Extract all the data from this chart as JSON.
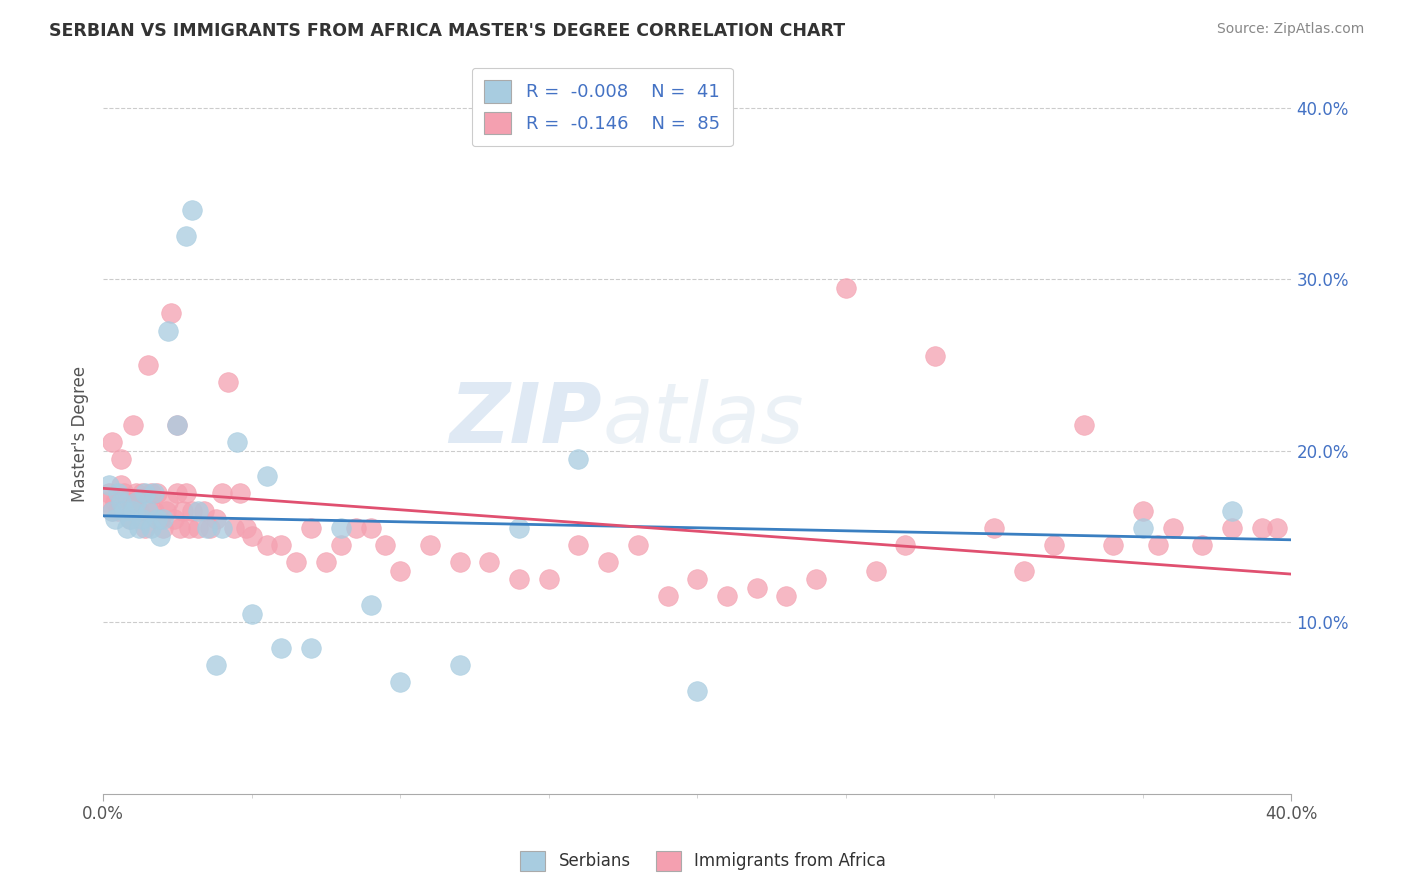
{
  "title": "SERBIAN VS IMMIGRANTS FROM AFRICA MASTER'S DEGREE CORRELATION CHART",
  "source": "Source: ZipAtlas.com",
  "ylabel": "Master's Degree",
  "legend_label1": "Serbians",
  "legend_label2": "Immigrants from Africa",
  "R1": -0.008,
  "N1": 41,
  "R2": -0.146,
  "N2": 85,
  "color_serbian": "#a8cce0",
  "color_african": "#f4a0b0",
  "color_line_serbian": "#3a7fc1",
  "color_line_african": "#e05070",
  "watermark_zip": "ZIP",
  "watermark_atlas": "atlas",
  "xmin": 0.0,
  "xmax": 0.4,
  "ymin": 0.0,
  "ymax": 0.42,
  "serbian_x": [
    0.002,
    0.003,
    0.004,
    0.005,
    0.006,
    0.007,
    0.008,
    0.009,
    0.01,
    0.011,
    0.012,
    0.013,
    0.014,
    0.015,
    0.016,
    0.017,
    0.018,
    0.019,
    0.02,
    0.022,
    0.025,
    0.028,
    0.03,
    0.032,
    0.035,
    0.038,
    0.04,
    0.045,
    0.05,
    0.055,
    0.06,
    0.07,
    0.08,
    0.09,
    0.1,
    0.12,
    0.14,
    0.16,
    0.2,
    0.35,
    0.38
  ],
  "serbian_y": [
    0.18,
    0.165,
    0.16,
    0.175,
    0.17,
    0.165,
    0.155,
    0.16,
    0.165,
    0.17,
    0.155,
    0.16,
    0.175,
    0.165,
    0.155,
    0.175,
    0.16,
    0.15,
    0.16,
    0.27,
    0.215,
    0.325,
    0.34,
    0.165,
    0.155,
    0.075,
    0.155,
    0.205,
    0.105,
    0.185,
    0.085,
    0.085,
    0.155,
    0.11,
    0.065,
    0.075,
    0.155,
    0.195,
    0.06,
    0.155,
    0.165
  ],
  "african_x": [
    0.001,
    0.002,
    0.003,
    0.004,
    0.005,
    0.006,
    0.007,
    0.008,
    0.009,
    0.01,
    0.011,
    0.012,
    0.013,
    0.014,
    0.015,
    0.016,
    0.017,
    0.018,
    0.019,
    0.02,
    0.021,
    0.022,
    0.023,
    0.024,
    0.025,
    0.026,
    0.027,
    0.028,
    0.029,
    0.03,
    0.032,
    0.034,
    0.036,
    0.038,
    0.04,
    0.042,
    0.044,
    0.046,
    0.048,
    0.05,
    0.055,
    0.06,
    0.065,
    0.07,
    0.075,
    0.08,
    0.085,
    0.09,
    0.095,
    0.1,
    0.11,
    0.12,
    0.13,
    0.14,
    0.15,
    0.16,
    0.17,
    0.18,
    0.19,
    0.2,
    0.21,
    0.22,
    0.23,
    0.24,
    0.25,
    0.26,
    0.27,
    0.28,
    0.3,
    0.31,
    0.32,
    0.33,
    0.34,
    0.35,
    0.355,
    0.36,
    0.37,
    0.38,
    0.39,
    0.395,
    0.003,
    0.006,
    0.01,
    0.015,
    0.025
  ],
  "african_y": [
    0.17,
    0.175,
    0.165,
    0.17,
    0.165,
    0.18,
    0.175,
    0.17,
    0.16,
    0.17,
    0.175,
    0.165,
    0.175,
    0.155,
    0.17,
    0.175,
    0.165,
    0.175,
    0.16,
    0.155,
    0.165,
    0.17,
    0.28,
    0.16,
    0.175,
    0.155,
    0.165,
    0.175,
    0.155,
    0.165,
    0.155,
    0.165,
    0.155,
    0.16,
    0.175,
    0.24,
    0.155,
    0.175,
    0.155,
    0.15,
    0.145,
    0.145,
    0.135,
    0.155,
    0.135,
    0.145,
    0.155,
    0.155,
    0.145,
    0.13,
    0.145,
    0.135,
    0.135,
    0.125,
    0.125,
    0.145,
    0.135,
    0.145,
    0.115,
    0.125,
    0.115,
    0.12,
    0.115,
    0.125,
    0.295,
    0.13,
    0.145,
    0.255,
    0.155,
    0.13,
    0.145,
    0.215,
    0.145,
    0.165,
    0.145,
    0.155,
    0.145,
    0.155,
    0.155,
    0.155,
    0.205,
    0.195,
    0.215,
    0.25,
    0.215
  ]
}
